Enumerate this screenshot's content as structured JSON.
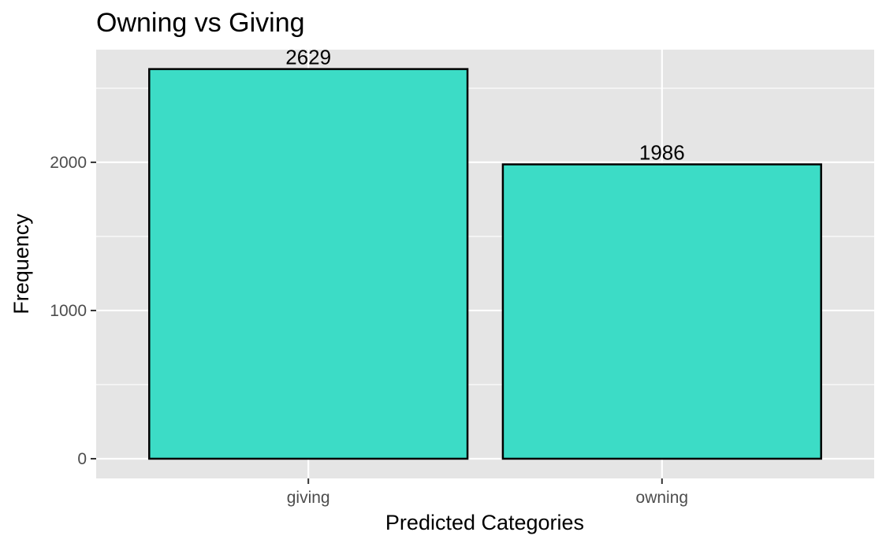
{
  "chart_data": {
    "type": "bar",
    "title": "Owning vs Giving",
    "xlabel": "Predicted Categories",
    "ylabel": "Frequency",
    "categories": [
      "giving",
      "owning"
    ],
    "values": [
      2629,
      1986
    ],
    "value_labels": [
      "2629",
      "1986"
    ],
    "ylim": [
      -133,
      2760
    ],
    "y_ticks": [
      0,
      1000,
      2000
    ],
    "y_tick_labels": [
      "0",
      "1000",
      "2000"
    ],
    "y_minor_ticks": [
      500,
      1500,
      2500
    ],
    "grid": true,
    "legend": "none"
  },
  "colors": {
    "panel_background": "#e5e5e5",
    "grid": "#ffffff",
    "bar_fill": "#3cdcc6",
    "bar_outline": "#000000"
  }
}
